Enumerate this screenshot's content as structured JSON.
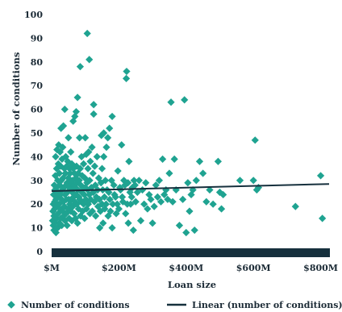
{
  "chart_data": {
    "type": "scatter",
    "xlabel": "Loan size",
    "ylabel": "Number of conditions",
    "x_unit": "$M",
    "xlim": [
      0,
      825
    ],
    "ylim": [
      0,
      100
    ],
    "x_ticks": [
      {
        "value": 0,
        "label": "$M"
      },
      {
        "value": 200,
        "label": "$200M"
      },
      {
        "value": 400,
        "label": "$400M"
      },
      {
        "value": 600,
        "label": "$600M"
      },
      {
        "value": 800,
        "label": "$800M"
      }
    ],
    "y_ticks": [
      0,
      10,
      20,
      30,
      40,
      50,
      60,
      70,
      80,
      90,
      100
    ],
    "legend_position": "bottom",
    "colors": {
      "points": "#1fa391",
      "trend": "#16303d",
      "axis_band": "#16303d"
    },
    "series": [
      {
        "name": "Number of conditions",
        "kind": "points",
        "points": [
          [
            3,
            13
          ],
          [
            4,
            17
          ],
          [
            5,
            20
          ],
          [
            5,
            11
          ],
          [
            6,
            24
          ],
          [
            7,
            15
          ],
          [
            7,
            9
          ],
          [
            8,
            28
          ],
          [
            9,
            21
          ],
          [
            9,
            18
          ],
          [
            10,
            26
          ],
          [
            10,
            12
          ],
          [
            11,
            32
          ],
          [
            12,
            19
          ],
          [
            12,
            40
          ],
          [
            13,
            22
          ],
          [
            13,
            8
          ],
          [
            14,
            27
          ],
          [
            15,
            35
          ],
          [
            15,
            14
          ],
          [
            16,
            43
          ],
          [
            17,
            23
          ],
          [
            18,
            30
          ],
          [
            18,
            10
          ],
          [
            19,
            16
          ],
          [
            20,
            37
          ],
          [
            20,
            25
          ],
          [
            21,
            45
          ],
          [
            22,
            20
          ],
          [
            23,
            33
          ],
          [
            23,
            12
          ],
          [
            24,
            28
          ],
          [
            25,
            42
          ],
          [
            25,
            18
          ],
          [
            26,
            24
          ],
          [
            27,
            36
          ],
          [
            27,
            14
          ],
          [
            28,
            52
          ],
          [
            29,
            30
          ],
          [
            30,
            22
          ],
          [
            30,
            11
          ],
          [
            31,
            39
          ],
          [
            32,
            26
          ],
          [
            33,
            17
          ],
          [
            33,
            44
          ],
          [
            34,
            31
          ],
          [
            35,
            21
          ],
          [
            35,
            53
          ],
          [
            36,
            15
          ],
          [
            37,
            27
          ],
          [
            38,
            35
          ],
          [
            38,
            19
          ],
          [
            39,
            60
          ],
          [
            40,
            24
          ],
          [
            40,
            13
          ],
          [
            41,
            33
          ],
          [
            42,
            40
          ],
          [
            43,
            28
          ],
          [
            43,
            16
          ],
          [
            44,
            22
          ],
          [
            45,
            36
          ],
          [
            46,
            11
          ],
          [
            46,
            29
          ],
          [
            47,
            25
          ],
          [
            48,
            38
          ],
          [
            49,
            18
          ],
          [
            50,
            31
          ],
          [
            50,
            48
          ],
          [
            51,
            22
          ],
          [
            52,
            14
          ],
          [
            53,
            27
          ],
          [
            53,
            35
          ],
          [
            54,
            20
          ],
          [
            55,
            33
          ],
          [
            56,
            26
          ],
          [
            57,
            17
          ],
          [
            57,
            42
          ],
          [
            58,
            29
          ],
          [
            59,
            22
          ],
          [
            60,
            37
          ],
          [
            60,
            13
          ],
          [
            61,
            25
          ],
          [
            62,
            30
          ],
          [
            63,
            19
          ],
          [
            64,
            35
          ],
          [
            64,
            55
          ],
          [
            65,
            23
          ],
          [
            66,
            28
          ],
          [
            67,
            16
          ],
          [
            68,
            33
          ],
          [
            69,
            21
          ],
          [
            69,
            57
          ],
          [
            70,
            27
          ],
          [
            71,
            14
          ],
          [
            72,
            31
          ],
          [
            73,
            24
          ],
          [
            73,
            59
          ],
          [
            74,
            36
          ],
          [
            75,
            20
          ],
          [
            76,
            29
          ],
          [
            77,
            65
          ],
          [
            77,
            12
          ],
          [
            78,
            26
          ],
          [
            79,
            33
          ],
          [
            80,
            18
          ],
          [
            81,
            23
          ],
          [
            82,
            30
          ],
          [
            83,
            48
          ],
          [
            84,
            22
          ],
          [
            85,
            35
          ],
          [
            85,
            78
          ],
          [
            86,
            15
          ],
          [
            87,
            28
          ],
          [
            88,
            21
          ],
          [
            89,
            40
          ],
          [
            90,
            25
          ],
          [
            91,
            32
          ],
          [
            92,
            17
          ],
          [
            93,
            27
          ],
          [
            95,
            20
          ],
          [
            95,
            37
          ],
          [
            97,
            24
          ],
          [
            98,
            14
          ],
          [
            99,
            31
          ],
          [
            100,
            27
          ],
          [
            100,
            48
          ],
          [
            102,
            22
          ],
          [
            103,
            41
          ],
          [
            104,
            18
          ],
          [
            105,
            29
          ],
          [
            106,
            92
          ],
          [
            107,
            26
          ],
          [
            108,
            35
          ],
          [
            109,
            20
          ],
          [
            110,
            42
          ],
          [
            112,
            24
          ],
          [
            112,
            81
          ],
          [
            113,
            30
          ],
          [
            114,
            16
          ],
          [
            115,
            38
          ],
          [
            116,
            22
          ],
          [
            118,
            27
          ],
          [
            120,
            44
          ],
          [
            121,
            17
          ],
          [
            123,
            33
          ],
          [
            124,
            25
          ],
          [
            125,
            62
          ],
          [
            125,
            58
          ],
          [
            127,
            21
          ],
          [
            128,
            36
          ],
          [
            130,
            28
          ],
          [
            131,
            15
          ],
          [
            133,
            23
          ],
          [
            135,
            40
          ],
          [
            137,
            26
          ],
          [
            138,
            19
          ],
          [
            140,
            31
          ],
          [
            142,
            22
          ],
          [
            143,
            10
          ],
          [
            145,
            17
          ],
          [
            147,
            29
          ],
          [
            148,
            49
          ],
          [
            150,
            20
          ],
          [
            150,
            35
          ],
          [
            152,
            26
          ],
          [
            153,
            12
          ],
          [
            155,
            50
          ],
          [
            155,
            40
          ],
          [
            157,
            23
          ],
          [
            158,
            18
          ],
          [
            160,
            30
          ],
          [
            162,
            20
          ],
          [
            163,
            44
          ],
          [
            165,
            26
          ],
          [
            167,
            48
          ],
          [
            168,
            15
          ],
          [
            170,
            25
          ],
          [
            172,
            52
          ],
          [
            173,
            22
          ],
          [
            175,
            17
          ],
          [
            178,
            30
          ],
          [
            180,
            10
          ],
          [
            180,
            57
          ],
          [
            182,
            20
          ],
          [
            185,
            28
          ],
          [
            187,
            24
          ],
          [
            190,
            23
          ],
          [
            192,
            16
          ],
          [
            195,
            20
          ],
          [
            197,
            34
          ],
          [
            200,
            18
          ],
          [
            203,
            27
          ],
          [
            205,
            26
          ],
          [
            208,
            45
          ],
          [
            210,
            23
          ],
          [
            212,
            21
          ],
          [
            215,
            30
          ],
          [
            218,
            28
          ],
          [
            220,
            16
          ],
          [
            222,
            73
          ],
          [
            223,
            76
          ],
          [
            225,
            20
          ],
          [
            227,
            29
          ],
          [
            228,
            12
          ],
          [
            230,
            38
          ],
          [
            233,
            25
          ],
          [
            235,
            20
          ],
          [
            238,
            23
          ],
          [
            240,
            27
          ],
          [
            243,
            9
          ],
          [
            245,
            30
          ],
          [
            248,
            28
          ],
          [
            250,
            21
          ],
          [
            255,
            25
          ],
          [
            260,
            30
          ],
          [
            265,
            13
          ],
          [
            270,
            26
          ],
          [
            275,
            20
          ],
          [
            280,
            29
          ],
          [
            285,
            18
          ],
          [
            290,
            24
          ],
          [
            295,
            22
          ],
          [
            300,
            12
          ],
          [
            305,
            19
          ],
          [
            310,
            28
          ],
          [
            315,
            23
          ],
          [
            320,
            30
          ],
          [
            325,
            21
          ],
          [
            330,
            39
          ],
          [
            335,
            24
          ],
          [
            340,
            26
          ],
          [
            345,
            22
          ],
          [
            350,
            33
          ],
          [
            355,
            63
          ],
          [
            360,
            21
          ],
          [
            365,
            39
          ],
          [
            370,
            26
          ],
          [
            380,
            11
          ],
          [
            390,
            22
          ],
          [
            395,
            64
          ],
          [
            400,
            8
          ],
          [
            405,
            29
          ],
          [
            410,
            17
          ],
          [
            415,
            24
          ],
          [
            420,
            26
          ],
          [
            425,
            9
          ],
          [
            430,
            30
          ],
          [
            440,
            38
          ],
          [
            450,
            33
          ],
          [
            460,
            21
          ],
          [
            470,
            26
          ],
          [
            480,
            20
          ],
          [
            495,
            38
          ],
          [
            500,
            25
          ],
          [
            505,
            18
          ],
          [
            510,
            24
          ],
          [
            560,
            30
          ],
          [
            600,
            30
          ],
          [
            605,
            47
          ],
          [
            610,
            26
          ],
          [
            615,
            27
          ],
          [
            725,
            19
          ],
          [
            800,
            32
          ],
          [
            805,
            14
          ]
        ]
      },
      {
        "name": "Linear (number of conditions)",
        "kind": "line",
        "x": [
          0,
          825
        ],
        "y": [
          25.5,
          28.5
        ]
      }
    ]
  }
}
